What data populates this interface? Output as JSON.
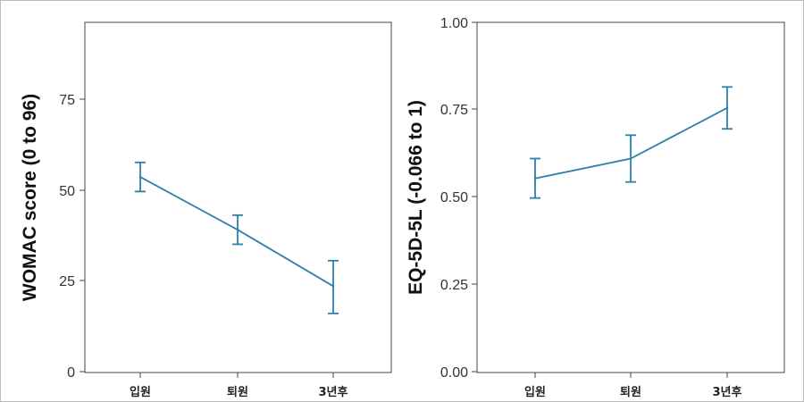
{
  "chart_data": [
    {
      "type": "line",
      "title": "",
      "xlabel": "",
      "ylabel": "WOMAC score (0 to 96)",
      "categories": [
        "입원",
        "퇴원",
        "3년후"
      ],
      "ylim": [
        0,
        96
      ],
      "yticks": [
        0,
        25,
        50,
        75
      ],
      "ytick_labels": [
        "0",
        "25",
        "50",
        "75"
      ],
      "grid": false,
      "line_color": "#2e7fac",
      "series": [
        {
          "values": [
            53.5,
            39,
            23.5
          ],
          "lower": [
            49.5,
            35,
            16
          ],
          "upper": [
            57.5,
            43,
            30.5
          ]
        }
      ]
    },
    {
      "type": "line",
      "title": "",
      "xlabel": "",
      "ylabel": "EQ-5D-5L (-0.066 to 1)",
      "categories": [
        "입원",
        "퇴원",
        "3년후"
      ],
      "ylim": [
        0,
        1
      ],
      "yticks": [
        0,
        0.25,
        0.5,
        0.75,
        1
      ],
      "ytick_labels": [
        "0.00",
        "0.25",
        "0.50",
        "0.75",
        "1.00"
      ],
      "grid": false,
      "line_color": "#2e7fac",
      "series": [
        {
          "values": [
            0.553,
            0.61,
            0.755
          ],
          "lower": [
            0.497,
            0.543,
            0.695
          ],
          "upper": [
            0.61,
            0.677,
            0.815
          ]
        }
      ]
    }
  ]
}
